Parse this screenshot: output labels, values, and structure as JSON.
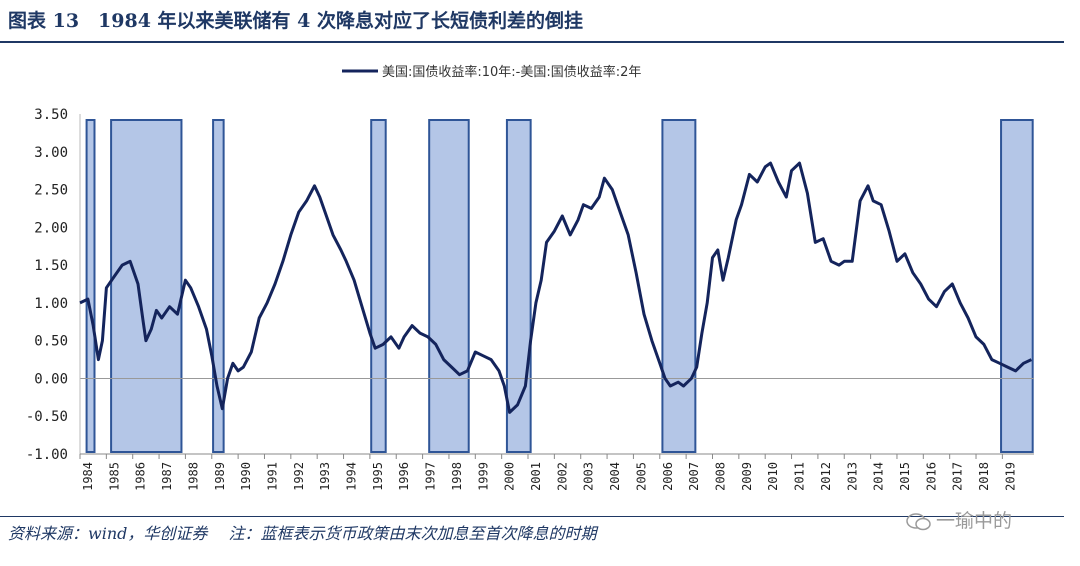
{
  "figure": {
    "title": "图表 13　1984 年以来美联储有 4 次降息对应了长短债利差的倒挂",
    "source": "资料来源：wind，华创证券　 注：蓝框表示货币政策由末次加息至首次降息的时期",
    "watermark": "一瑜中的"
  },
  "colors": {
    "line": "#14245c",
    "band_fill": "#b4c6e7",
    "band_stroke": "#2f5597",
    "title": "#1f3864",
    "zero_line": "#999999"
  },
  "chart_data": {
    "type": "line",
    "title": "",
    "xlabel": "",
    "ylabel": "",
    "legend": {
      "position": "top-center"
    },
    "grid": false,
    "ylim": [
      -1.0,
      3.5
    ],
    "xlim": [
      1984.0,
      2020.2
    ],
    "y_ticks": [
      "3.50",
      "3.00",
      "2.50",
      "2.00",
      "1.50",
      "1.00",
      "0.50",
      "0.00",
      "-0.50",
      "-1.00"
    ],
    "x_ticks": [
      "1984",
      "1985",
      "1986",
      "1987",
      "1988",
      "1989",
      "1990",
      "1991",
      "1992",
      "1993",
      "1994",
      "1995",
      "1996",
      "1997",
      "1998",
      "1999",
      "2000",
      "2001",
      "2002",
      "2003",
      "2004",
      "2005",
      "2006",
      "2007",
      "2008",
      "2009",
      "2010",
      "2011",
      "2012",
      "2013",
      "2014",
      "2015",
      "2016",
      "2017",
      "2018",
      "2019"
    ],
    "series": [
      {
        "name": "美国:国债收益率:10年:-美国:国债收益率:2年",
        "points": [
          [
            1984.0,
            1.0
          ],
          [
            1984.3,
            1.05
          ],
          [
            1984.5,
            0.7
          ],
          [
            1984.7,
            0.25
          ],
          [
            1984.85,
            0.5
          ],
          [
            1985.0,
            1.2
          ],
          [
            1985.3,
            1.35
          ],
          [
            1985.6,
            1.5
          ],
          [
            1985.9,
            1.55
          ],
          [
            1986.2,
            1.25
          ],
          [
            1986.4,
            0.75
          ],
          [
            1986.5,
            0.5
          ],
          [
            1986.7,
            0.65
          ],
          [
            1986.9,
            0.9
          ],
          [
            1987.1,
            0.8
          ],
          [
            1987.4,
            0.95
          ],
          [
            1987.7,
            0.85
          ],
          [
            1988.0,
            1.3
          ],
          [
            1988.2,
            1.2
          ],
          [
            1988.5,
            0.95
          ],
          [
            1988.8,
            0.65
          ],
          [
            1989.0,
            0.3
          ],
          [
            1989.2,
            -0.1
          ],
          [
            1989.4,
            -0.4
          ],
          [
            1989.6,
            0.0
          ],
          [
            1989.8,
            0.2
          ],
          [
            1990.0,
            0.1
          ],
          [
            1990.2,
            0.15
          ],
          [
            1990.5,
            0.35
          ],
          [
            1990.8,
            0.8
          ],
          [
            1991.1,
            1.0
          ],
          [
            1991.4,
            1.25
          ],
          [
            1991.7,
            1.55
          ],
          [
            1992.0,
            1.9
          ],
          [
            1992.3,
            2.2
          ],
          [
            1992.6,
            2.35
          ],
          [
            1992.9,
            2.55
          ],
          [
            1993.1,
            2.4
          ],
          [
            1993.3,
            2.2
          ],
          [
            1993.6,
            1.9
          ],
          [
            1993.9,
            1.7
          ],
          [
            1994.1,
            1.55
          ],
          [
            1994.4,
            1.3
          ],
          [
            1994.7,
            0.95
          ],
          [
            1995.0,
            0.6
          ],
          [
            1995.2,
            0.4
          ],
          [
            1995.5,
            0.45
          ],
          [
            1995.8,
            0.55
          ],
          [
            1996.1,
            0.4
          ],
          [
            1996.3,
            0.55
          ],
          [
            1996.6,
            0.7
          ],
          [
            1996.9,
            0.6
          ],
          [
            1997.2,
            0.55
          ],
          [
            1997.5,
            0.45
          ],
          [
            1997.8,
            0.25
          ],
          [
            1998.1,
            0.15
          ],
          [
            1998.4,
            0.05
          ],
          [
            1998.7,
            0.1
          ],
          [
            1999.0,
            0.35
          ],
          [
            1999.3,
            0.3
          ],
          [
            1999.6,
            0.25
          ],
          [
            1999.9,
            0.1
          ],
          [
            2000.1,
            -0.1
          ],
          [
            2000.3,
            -0.45
          ],
          [
            2000.6,
            -0.35
          ],
          [
            2000.9,
            -0.1
          ],
          [
            2001.1,
            0.5
          ],
          [
            2001.3,
            1.0
          ],
          [
            2001.5,
            1.3
          ],
          [
            2001.7,
            1.8
          ],
          [
            2002.0,
            1.95
          ],
          [
            2002.3,
            2.15
          ],
          [
            2002.6,
            1.9
          ],
          [
            2002.9,
            2.1
          ],
          [
            2003.1,
            2.3
          ],
          [
            2003.4,
            2.25
          ],
          [
            2003.7,
            2.4
          ],
          [
            2003.9,
            2.65
          ],
          [
            2004.2,
            2.5
          ],
          [
            2004.5,
            2.2
          ],
          [
            2004.8,
            1.9
          ],
          [
            2005.1,
            1.4
          ],
          [
            2005.4,
            0.85
          ],
          [
            2005.7,
            0.5
          ],
          [
            2006.0,
            0.2
          ],
          [
            2006.2,
            0.0
          ],
          [
            2006.4,
            -0.1
          ],
          [
            2006.7,
            -0.05
          ],
          [
            2006.9,
            -0.1
          ],
          [
            2007.2,
            0.0
          ],
          [
            2007.4,
            0.15
          ],
          [
            2007.6,
            0.6
          ],
          [
            2007.8,
            1.0
          ],
          [
            2008.0,
            1.6
          ],
          [
            2008.2,
            1.7
          ],
          [
            2008.4,
            1.3
          ],
          [
            2008.6,
            1.6
          ],
          [
            2008.9,
            2.1
          ],
          [
            2009.1,
            2.3
          ],
          [
            2009.4,
            2.7
          ],
          [
            2009.7,
            2.6
          ],
          [
            2010.0,
            2.8
          ],
          [
            2010.2,
            2.85
          ],
          [
            2010.5,
            2.6
          ],
          [
            2010.8,
            2.4
          ],
          [
            2011.0,
            2.75
          ],
          [
            2011.3,
            2.85
          ],
          [
            2011.6,
            2.45
          ],
          [
            2011.9,
            1.8
          ],
          [
            2012.2,
            1.85
          ],
          [
            2012.5,
            1.55
          ],
          [
            2012.8,
            1.5
          ],
          [
            2013.0,
            1.55
          ],
          [
            2013.3,
            1.55
          ],
          [
            2013.6,
            2.35
          ],
          [
            2013.9,
            2.55
          ],
          [
            2014.1,
            2.35
          ],
          [
            2014.4,
            2.3
          ],
          [
            2014.7,
            1.95
          ],
          [
            2015.0,
            1.55
          ],
          [
            2015.3,
            1.65
          ],
          [
            2015.6,
            1.4
          ],
          [
            2015.9,
            1.25
          ],
          [
            2016.2,
            1.05
          ],
          [
            2016.5,
            0.95
          ],
          [
            2016.8,
            1.15
          ],
          [
            2017.1,
            1.25
          ],
          [
            2017.4,
            1.0
          ],
          [
            2017.7,
            0.8
          ],
          [
            2018.0,
            0.55
          ],
          [
            2018.3,
            0.45
          ],
          [
            2018.6,
            0.25
          ],
          [
            2018.9,
            0.2
          ],
          [
            2019.2,
            0.15
          ],
          [
            2019.5,
            0.1
          ],
          [
            2019.8,
            0.2
          ],
          [
            2020.1,
            0.25
          ]
        ]
      }
    ],
    "shaded_periods": [
      [
        1984.25,
        1984.55
      ],
      [
        1985.18,
        1987.85
      ],
      [
        1989.05,
        1989.45
      ],
      [
        1995.05,
        1995.6
      ],
      [
        1997.25,
        1998.75
      ],
      [
        2000.2,
        2001.1
      ],
      [
        2006.1,
        2007.35
      ],
      [
        2018.95,
        2020.15
      ]
    ]
  }
}
